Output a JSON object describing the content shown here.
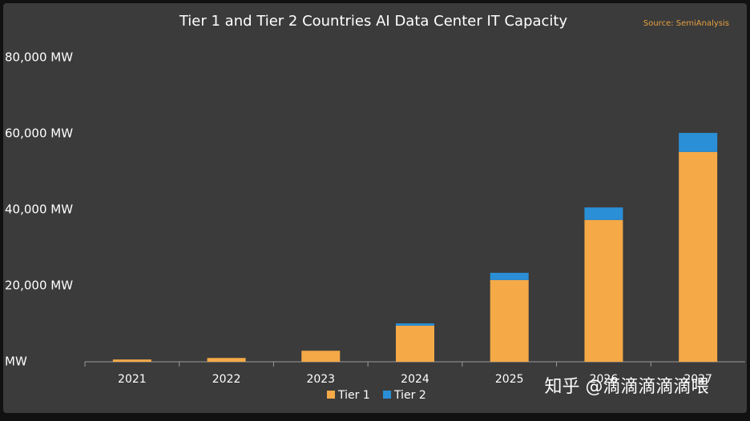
{
  "chart_data": {
    "type": "stacked-bar",
    "title": "Tier 1 and Tier 2 Countries AI Data Center IT Capacity",
    "source": "Source: SemiAnalysis",
    "watermark": "知乎 @滴滴滴滴滴喂",
    "categories": [
      "2021",
      "2022",
      "2023",
      "2024",
      "2025",
      "2026",
      "2027"
    ],
    "series": [
      {
        "name": "Tier 1",
        "color": "#f5a947",
        "values": [
          600,
          1000,
          2900,
          9500,
          21500,
          37300,
          55200
        ]
      },
      {
        "name": "Tier 2",
        "color": "#2a8fd6",
        "values": [
          0,
          0,
          0,
          600,
          1900,
          3300,
          5000
        ]
      }
    ],
    "ylim": [
      0,
      80000
    ],
    "yticks": [
      {
        "value": 0,
        "label": "MW"
      },
      {
        "value": 20000,
        "label": "20,000 MW"
      },
      {
        "value": 40000,
        "label": "40,000 MW"
      },
      {
        "value": 60000,
        "label": "60,000 MW"
      },
      {
        "value": 80000,
        "label": "80,000 MW"
      }
    ],
    "legend": "bottom"
  }
}
